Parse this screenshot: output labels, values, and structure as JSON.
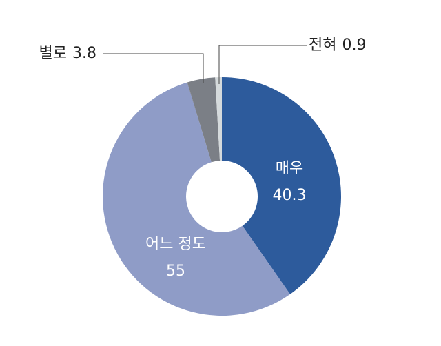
{
  "chart_data": {
    "type": "donut",
    "center_label": "%",
    "categories": [
      "매우",
      "어느 정도",
      "별로",
      "전혀"
    ],
    "values": [
      40.3,
      55,
      3.8,
      0.9
    ],
    "colors": [
      "#2d5b9c",
      "#8f9cc7",
      "#7b7f86",
      "#d5dadc"
    ]
  }
}
